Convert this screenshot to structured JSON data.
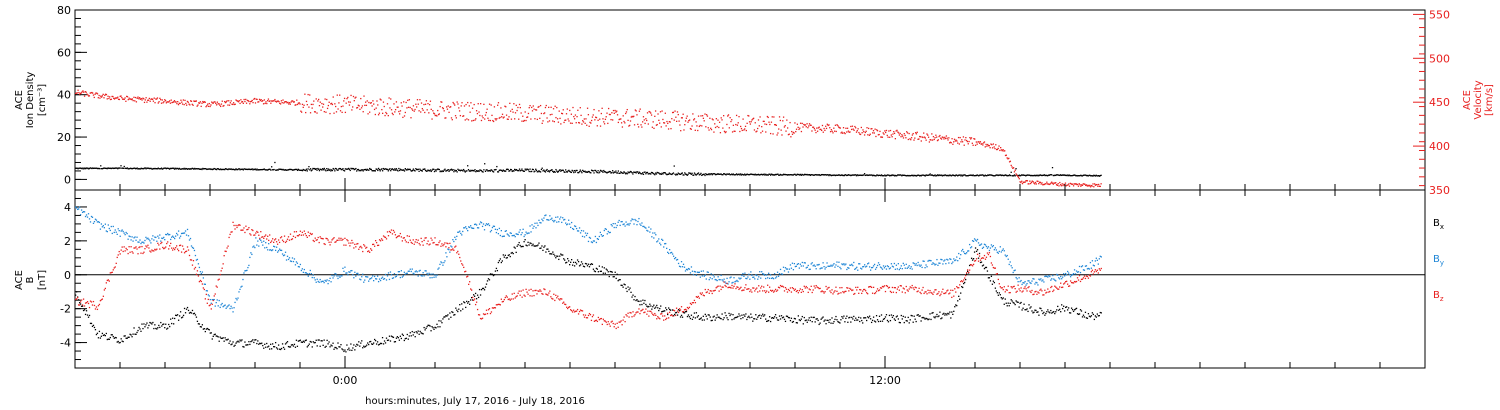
{
  "xlabel": "hours:minutes, July 17, 2016 - July 18, 2016",
  "colors": {
    "black": "#000000",
    "red": "#e8201f",
    "blue": "#1f86d6"
  },
  "chart_data": [
    {
      "type": "scatter",
      "panel": "top",
      "ylabel_lines": [
        "ACE",
        "Ion Density",
        "[cm⁻³]"
      ],
      "ylabel_right_lines": [
        "ACE",
        "Velocity",
        "[km/s]"
      ],
      "xlim": [
        -6.0,
        24.0
      ],
      "xticks": [
        {
          "value": 0,
          "label": "0:00"
        },
        {
          "value": 12,
          "label": "12:00"
        }
      ],
      "y_left": {
        "ylim": [
          -5,
          80
        ],
        "ticks": [
          0,
          20,
          40,
          60,
          80
        ]
      },
      "y_right": {
        "ylim": [
          350,
          555
        ],
        "ticks": [
          350,
          400,
          450,
          500,
          550
        ]
      },
      "series": [
        {
          "axis": "left",
          "color": "#000000",
          "x": [
            -6.0,
            -5.0,
            -4.0,
            -3.0,
            -2.0,
            -1.0,
            0.0,
            1.0,
            2.0,
            3.0,
            4.0,
            5.0,
            6.0,
            7.0,
            8.0,
            9.0,
            10.0,
            11.0,
            12.0,
            13.0,
            14.0,
            15.0,
            16.0,
            16.8
          ],
          "y": [
            5.5,
            5.5,
            5.4,
            5.2,
            5.0,
            4.8,
            4.9,
            5.0,
            4.6,
            4.3,
            4.6,
            4.2,
            3.8,
            3.0,
            2.8,
            2.6,
            2.5,
            2.3,
            2.2,
            2.2,
            2.2,
            2.2,
            2.3,
            2.0
          ]
        },
        {
          "axis": "right",
          "color": "#e8201f",
          "x": [
            -6.0,
            -5.5,
            -5.0,
            -4.0,
            -3.0,
            -2.0,
            -1.0,
            0.0,
            1.0,
            2.0,
            3.0,
            4.0,
            5.0,
            6.0,
            7.0,
            8.0,
            9.0,
            10.0,
            11.0,
            12.0,
            13.0,
            14.0,
            14.6,
            15.0,
            16.0,
            16.8
          ],
          "y": [
            462,
            458,
            455,
            452,
            448,
            452,
            450,
            448,
            445,
            442,
            440,
            438,
            435,
            433,
            431,
            427,
            425,
            422,
            420,
            415,
            410,
            405,
            398,
            360,
            357,
            356
          ]
        }
      ]
    },
    {
      "type": "scatter",
      "panel": "bottom",
      "ylabel_lines": [
        "ACE",
        "B",
        "[nT]"
      ],
      "xlim": [
        -6.0,
        24.0
      ],
      "ylim": [
        -5.5,
        5.0
      ],
      "yticks": [
        -4,
        -2,
        0,
        2,
        4
      ],
      "legend": [
        {
          "name": "Bx",
          "base": "B",
          "sub": "x",
          "color": "#000000"
        },
        {
          "name": "By",
          "base": "B",
          "sub": "y",
          "color": "#1f86d6"
        },
        {
          "name": "Bz",
          "base": "B",
          "sub": "z",
          "color": "#e8201f"
        }
      ],
      "series": [
        {
          "name": "Bx",
          "color": "#000000",
          "x": [
            -6.0,
            -5.5,
            -5.0,
            -4.5,
            -4.0,
            -3.5,
            -3.0,
            -2.5,
            -2.0,
            -1.5,
            -1.0,
            -0.5,
            0.0,
            0.5,
            1.0,
            1.5,
            2.0,
            2.5,
            3.0,
            3.5,
            4.0,
            4.5,
            5.0,
            5.5,
            6.0,
            6.5,
            7.0,
            7.5,
            8.0,
            8.5,
            9.0,
            9.5,
            10.0,
            10.5,
            11.0,
            11.5,
            12.0,
            12.5,
            13.0,
            13.5,
            14.0,
            14.3,
            14.6,
            15.0,
            15.5,
            16.0,
            16.5,
            16.8
          ],
          "y": [
            -1.0,
            -3.5,
            -3.8,
            -3.0,
            -3.0,
            -2.0,
            -3.5,
            -4.0,
            -4.0,
            -4.2,
            -4.0,
            -4.0,
            -4.3,
            -4.0,
            -3.8,
            -3.5,
            -3.0,
            -2.0,
            -1.0,
            1.0,
            2.0,
            1.5,
            0.8,
            0.5,
            0.0,
            -1.5,
            -2.0,
            -2.3,
            -2.5,
            -2.4,
            -2.5,
            -2.5,
            -2.6,
            -2.7,
            -2.6,
            -2.6,
            -2.5,
            -2.6,
            -2.4,
            -2.3,
            1.5,
            0.0,
            -1.5,
            -1.8,
            -2.2,
            -1.9,
            -2.4,
            -2.4
          ]
        },
        {
          "name": "By",
          "color": "#1f86d6",
          "x": [
            -6.0,
            -5.5,
            -5.0,
            -4.5,
            -4.0,
            -3.5,
            -3.0,
            -2.5,
            -2.0,
            -1.5,
            -1.0,
            -0.5,
            0.0,
            0.5,
            1.0,
            1.5,
            2.0,
            2.5,
            3.0,
            3.5,
            4.0,
            4.5,
            5.0,
            5.5,
            6.0,
            6.5,
            7.0,
            7.5,
            8.0,
            8.5,
            9.0,
            9.5,
            10.0,
            10.5,
            11.0,
            11.5,
            12.0,
            12.5,
            13.0,
            13.5,
            14.0,
            14.3,
            14.6,
            15.0,
            15.5,
            16.0,
            16.5,
            16.8
          ],
          "y": [
            4.0,
            3.0,
            2.5,
            2.0,
            2.3,
            2.5,
            -1.5,
            -2.0,
            2.0,
            1.5,
            0.5,
            -0.5,
            0.3,
            -0.3,
            0.0,
            0.2,
            0.0,
            2.5,
            3.0,
            2.5,
            2.5,
            3.5,
            3.0,
            2.0,
            3.0,
            3.2,
            2.0,
            0.5,
            0.0,
            -0.3,
            0.0,
            0.0,
            0.6,
            0.5,
            0.6,
            0.5,
            0.6,
            0.5,
            0.7,
            0.8,
            2.0,
            1.6,
            1.5,
            -0.5,
            -0.3,
            0.0,
            0.5,
            1.0
          ]
        },
        {
          "name": "Bz",
          "color": "#e8201f",
          "x": [
            -6.0,
            -5.5,
            -5.0,
            -4.5,
            -4.0,
            -3.5,
            -3.0,
            -2.5,
            -2.0,
            -1.5,
            -1.0,
            -0.5,
            0.0,
            0.5,
            1.0,
            1.5,
            2.0,
            2.5,
            3.0,
            3.5,
            4.0,
            4.5,
            5.0,
            5.5,
            6.0,
            6.5,
            7.0,
            7.5,
            8.0,
            8.5,
            9.0,
            9.5,
            10.0,
            10.5,
            11.0,
            11.5,
            12.0,
            12.5,
            13.0,
            13.5,
            14.0,
            14.3,
            14.6,
            15.0,
            15.5,
            16.0,
            16.5,
            16.8
          ],
          "y": [
            -1.5,
            -1.8,
            1.5,
            1.5,
            1.8,
            1.5,
            -2.0,
            3.0,
            2.5,
            2.0,
            2.5,
            2.0,
            2.0,
            1.5,
            2.5,
            2.0,
            2.0,
            1.5,
            -2.5,
            -1.5,
            -1.0,
            -1.0,
            -2.0,
            -2.5,
            -3.0,
            -2.0,
            -2.5,
            -2.0,
            -1.0,
            -0.5,
            -0.8,
            -0.8,
            -0.8,
            -0.8,
            -0.9,
            -0.9,
            -0.8,
            -0.8,
            -0.9,
            -1.1,
            1.0,
            1.2,
            -0.8,
            -0.8,
            -1.0,
            -0.5,
            0.0,
            0.3
          ]
        }
      ]
    }
  ]
}
